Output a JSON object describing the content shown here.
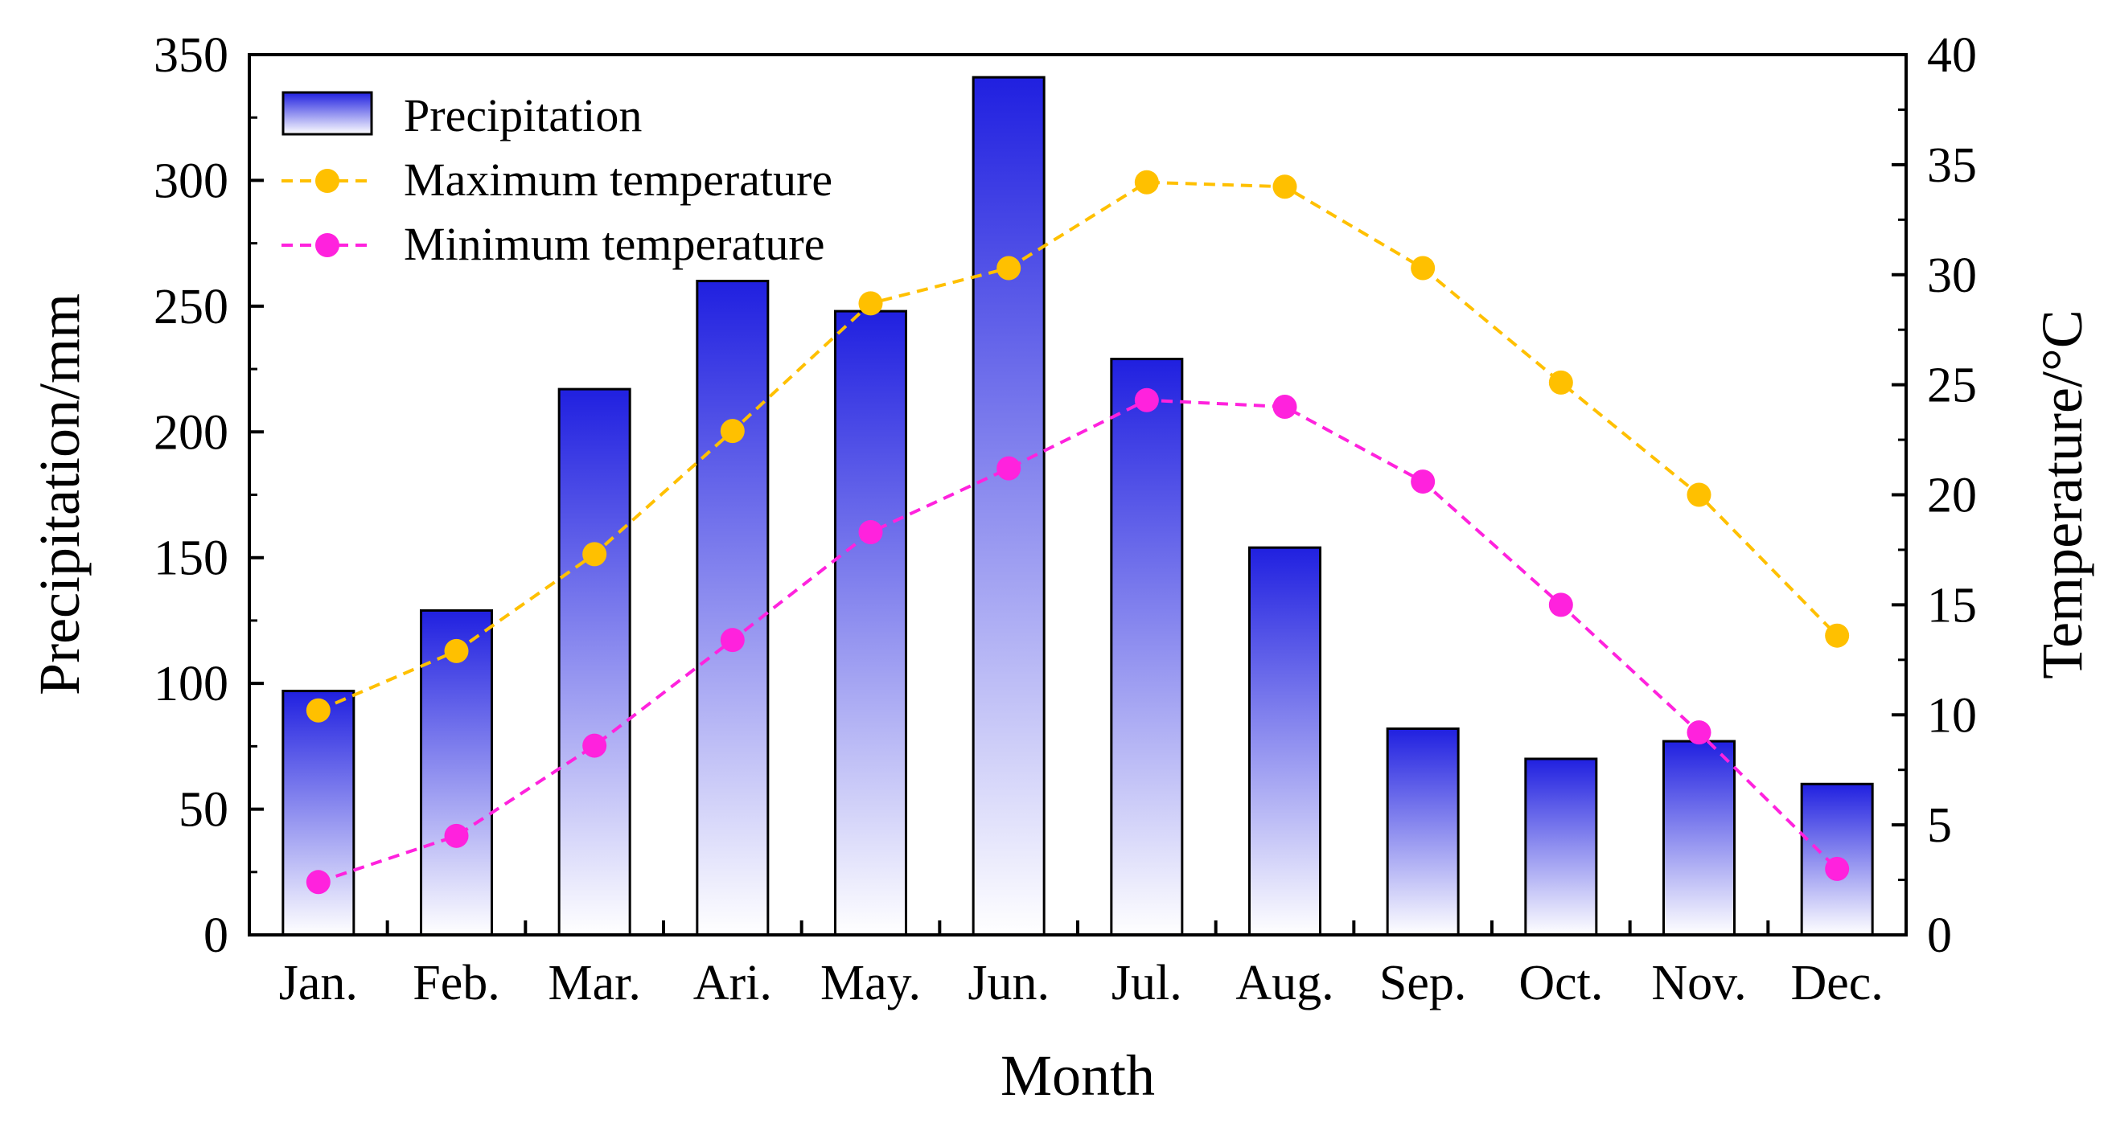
{
  "chart_data": {
    "type": "bar+line",
    "xlabel": "Month",
    "ylabel_left": "Precipitation/mm",
    "ylabel_right": "Temperature/°C",
    "ylim_left": [
      0,
      350
    ],
    "ylim_right": [
      0,
      40
    ],
    "yticks_left": [
      0,
      50,
      100,
      150,
      200,
      250,
      300,
      350
    ],
    "yticks_right": [
      0,
      5,
      10,
      15,
      20,
      25,
      30,
      35,
      40
    ],
    "categories": [
      "Jan.",
      "Feb.",
      "Mar.",
      "Ari.",
      "May.",
      "Jun.",
      "Jul.",
      "Aug.",
      "Sep.",
      "Oct.",
      "Nov.",
      "Dec."
    ],
    "legend_position": "top-left",
    "grid": false,
    "series": [
      {
        "name": "Precipitation",
        "kind": "bar",
        "axis": "left",
        "color_top": "#2020e0",
        "color_bottom": "#ffffff",
        "values": [
          97,
          129,
          217,
          260,
          248,
          341,
          229,
          154,
          82,
          70,
          77,
          60
        ]
      },
      {
        "name": "Maximum temperature",
        "kind": "line",
        "axis": "right",
        "color": "#ffc000",
        "values": [
          10.2,
          12.9,
          17.3,
          22.9,
          28.7,
          30.3,
          34.2,
          34.0,
          30.3,
          25.1,
          20.0,
          13.6
        ]
      },
      {
        "name": "Minimum temperature",
        "kind": "line",
        "axis": "right",
        "color": "#ff22dd",
        "values": [
          2.4,
          4.5,
          8.6,
          13.4,
          18.3,
          21.2,
          24.3,
          24.0,
          20.6,
          15.0,
          9.2,
          3.0
        ]
      }
    ]
  }
}
